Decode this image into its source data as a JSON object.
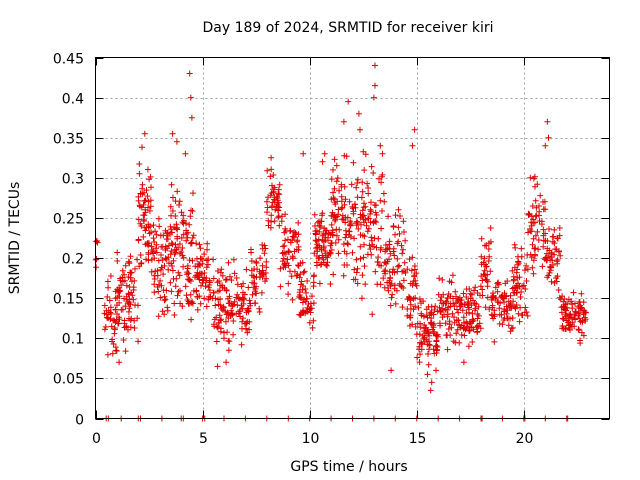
{
  "chart_data": {
    "type": "scatter",
    "title": "Day 189 of 2024, SRMTID for receiver kiri",
    "xlabel": "GPS time / hours",
    "ylabel": "SRMTID / TECUs",
    "xlim": [
      0,
      24
    ],
    "ylim": [
      0,
      0.45
    ],
    "x_ticks": [
      "0",
      "5",
      "10",
      "15",
      "20"
    ],
    "x_tick_values": [
      0,
      5,
      10,
      15,
      20
    ],
    "y_ticks": [
      "0",
      "0.05",
      "0.1",
      "0.15",
      "0.2",
      "0.25",
      "0.3",
      "0.35",
      "0.4",
      "0.45"
    ],
    "y_tick_values": [
      0,
      0.05,
      0.1,
      0.15,
      0.2,
      0.25,
      0.3,
      0.35,
      0.4,
      0.45
    ],
    "grid": true,
    "marker": "+",
    "color": "#e00000",
    "series": [
      {
        "name": "SRMTID",
        "segments": [
          {
            "t0": 0.0,
            "t1": 0.1,
            "base": 0.22,
            "spread": 0.03,
            "n": 6
          },
          {
            "t0": 0.4,
            "t1": 1.0,
            "base": 0.12,
            "spread": 0.05,
            "n": 40
          },
          {
            "t0": 1.0,
            "t1": 2.0,
            "base": 0.15,
            "spread": 0.06,
            "n": 80
          },
          {
            "t0": 2.0,
            "t1": 2.6,
            "base": 0.26,
            "spread": 0.08,
            "n": 60
          },
          {
            "t0": 2.6,
            "t1": 3.5,
            "base": 0.19,
            "spread": 0.06,
            "n": 70
          },
          {
            "t0": 3.5,
            "t1": 4.2,
            "base": 0.22,
            "spread": 0.08,
            "n": 60
          },
          {
            "t0": 4.2,
            "t1": 4.6,
            "base": 0.19,
            "spread": 0.09,
            "n": 40
          },
          {
            "t0": 4.6,
            "t1": 5.5,
            "base": 0.18,
            "spread": 0.05,
            "n": 60
          },
          {
            "t0": 5.5,
            "t1": 7.2,
            "base": 0.14,
            "spread": 0.05,
            "n": 120
          },
          {
            "t0": 7.2,
            "t1": 8.0,
            "base": 0.18,
            "spread": 0.05,
            "n": 50
          },
          {
            "t0": 8.0,
            "t1": 8.6,
            "base": 0.27,
            "spread": 0.04,
            "n": 45
          },
          {
            "t0": 8.6,
            "t1": 9.5,
            "base": 0.21,
            "spread": 0.05,
            "n": 60
          },
          {
            "t0": 9.5,
            "t1": 10.2,
            "base": 0.15,
            "spread": 0.04,
            "n": 50
          },
          {
            "t0": 10.2,
            "t1": 11.0,
            "base": 0.22,
            "spread": 0.05,
            "n": 70
          },
          {
            "t0": 11.0,
            "t1": 12.0,
            "base": 0.25,
            "spread": 0.07,
            "n": 80
          },
          {
            "t0": 12.0,
            "t1": 13.5,
            "base": 0.24,
            "spread": 0.09,
            "n": 110
          },
          {
            "t0": 13.5,
            "t1": 14.5,
            "base": 0.2,
            "spread": 0.06,
            "n": 70
          },
          {
            "t0": 14.5,
            "t1": 15.0,
            "base": 0.16,
            "spread": 0.06,
            "n": 35
          },
          {
            "t0": 15.0,
            "t1": 16.0,
            "base": 0.11,
            "spread": 0.04,
            "n": 80
          },
          {
            "t0": 16.0,
            "t1": 18.0,
            "base": 0.13,
            "spread": 0.04,
            "n": 140
          },
          {
            "t0": 18.0,
            "t1": 18.5,
            "base": 0.18,
            "spread": 0.05,
            "n": 35
          },
          {
            "t0": 18.5,
            "t1": 19.5,
            "base": 0.14,
            "spread": 0.04,
            "n": 70
          },
          {
            "t0": 19.5,
            "t1": 20.2,
            "base": 0.17,
            "spread": 0.05,
            "n": 50
          },
          {
            "t0": 20.2,
            "t1": 21.0,
            "base": 0.24,
            "spread": 0.06,
            "n": 55
          },
          {
            "t0": 21.0,
            "t1": 21.7,
            "base": 0.2,
            "spread": 0.05,
            "n": 50
          },
          {
            "t0": 21.7,
            "t1": 22.1,
            "base": 0.13,
            "spread": 0.03,
            "n": 30
          },
          {
            "t0": 22.1,
            "t1": 22.9,
            "base": 0.13,
            "spread": 0.03,
            "n": 55
          }
        ],
        "peaks": [
          [
            4.4,
            0.43
          ],
          [
            4.45,
            0.4
          ],
          [
            4.5,
            0.375
          ],
          [
            4.2,
            0.33
          ],
          [
            13.05,
            0.44
          ],
          [
            13.05,
            0.415
          ],
          [
            13.0,
            0.4
          ],
          [
            11.8,
            0.395
          ],
          [
            12.3,
            0.38
          ],
          [
            12.35,
            0.36
          ],
          [
            11.6,
            0.37
          ],
          [
            2.3,
            0.355
          ],
          [
            3.6,
            0.355
          ],
          [
            3.8,
            0.345
          ],
          [
            10.7,
            0.33
          ],
          [
            10.6,
            0.32
          ],
          [
            14.9,
            0.36
          ],
          [
            14.8,
            0.34
          ],
          [
            21.1,
            0.37
          ],
          [
            21.15,
            0.35
          ],
          [
            21.0,
            0.34
          ],
          [
            9.7,
            0.33
          ],
          [
            8.2,
            0.325
          ],
          [
            13.3,
            0.34
          ],
          [
            13.4,
            0.33
          ],
          [
            20.3,
            0.3
          ],
          [
            15.65,
            0.035
          ],
          [
            15.7,
            0.045
          ],
          [
            15.5,
            0.055
          ],
          [
            15.9,
            0.06
          ],
          [
            13.8,
            0.06
          ],
          [
            5.7,
            0.065
          ],
          [
            6.1,
            0.07
          ],
          [
            1.1,
            0.07
          ],
          [
            17.2,
            0.07
          ]
        ],
        "zero_times": [
          0.5,
          0.6,
          1.2,
          2.0,
          2.1,
          3.1,
          4.0,
          4.1,
          5.0,
          5.1,
          6.0,
          7.0,
          8.0,
          9.0,
          10.0,
          11.0,
          12.0,
          13.0,
          14.0,
          15.0,
          16.0,
          17.0,
          18.0,
          18.05,
          19.0,
          20.0,
          20.05,
          21.0,
          22.0,
          22.05
        ]
      }
    ]
  }
}
